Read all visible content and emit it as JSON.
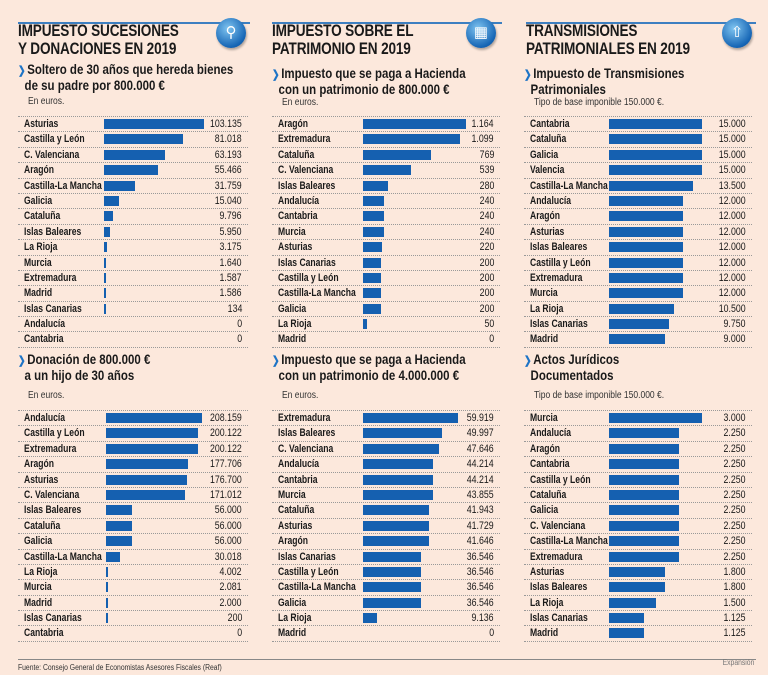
{
  "colors": {
    "bar": "#1560b0",
    "background": "#fce8dc",
    "accent": "#1e74c6"
  },
  "sections": [
    {
      "title_line1": "IMPUESTO SUCESIONES",
      "title_line2": "Y DONACIONES EN 2019",
      "icon": "magnifier-box-icon"
    },
    {
      "title_line1": "IMPUESTO SOBRE EL",
      "title_line2": "PATRIMONIO EN 2019",
      "icon": "building-icon"
    },
    {
      "title_line1": "TRANSMISIONES",
      "title_line2": "PATRIMONIALES EN 2019",
      "icon": "house-arrow-icon"
    }
  ],
  "chart_data": [
    {
      "type": "bar",
      "orientation": "horizontal",
      "title_line1": "Soltero de 30 años que hereda bienes",
      "title_line2": "de su padre por 800.000 €",
      "note": "En euros.",
      "categories": [
        "Asturias",
        "Castilla y León",
        "C. Valenciana",
        "Aragón",
        "Castilla-La Mancha",
        "Galicia",
        "Cataluña",
        "Islas Baleares",
        "La Rioja",
        "Murcia",
        "Extremadura",
        "Madrid",
        "Islas Canarias",
        "Andalucía",
        "Cantabria"
      ],
      "values": [
        103135,
        81018,
        63193,
        55466,
        31759,
        15040,
        9796,
        5950,
        3175,
        1640,
        1587,
        1586,
        134,
        0,
        0
      ],
      "labels": [
        "103.135",
        "81.018",
        "63.193",
        "55.466",
        "31.759",
        "15.040",
        "9.796",
        "5.950",
        "3.175",
        "1.640",
        "1.587",
        "1.586",
        "134",
        "0",
        "0"
      ]
    },
    {
      "type": "bar",
      "orientation": "horizontal",
      "title_line1": "Impuesto que se paga a Hacienda",
      "title_line2": "con un patrimonio de 800.000 €",
      "note": "En euros.",
      "categories": [
        "Aragón",
        "Extremadura",
        "Cataluña",
        "C. Valenciana",
        "Islas Baleares",
        "Andalucía",
        "Cantabria",
        "Murcia",
        "Asturias",
        "Islas Canarias",
        "Castilla y León",
        "Castilla-La Mancha",
        "Galicia",
        "La Rioja",
        "Madrid"
      ],
      "values": [
        1164,
        1099,
        769,
        539,
        280,
        240,
        240,
        240,
        220,
        200,
        200,
        200,
        200,
        50,
        0
      ],
      "labels": [
        "1.164",
        "1.099",
        "769",
        "539",
        "280",
        "240",
        "240",
        "240",
        "220",
        "200",
        "200",
        "200",
        "200",
        "50",
        "0"
      ]
    },
    {
      "type": "bar",
      "orientation": "horizontal",
      "title_line1": "Impuesto de Transmisiones",
      "title_line2": "Patrimoniales",
      "note": "Tipo de base imponible 150.000 €.",
      "categories": [
        "Cantabria",
        "Cataluña",
        "Galicia",
        "Valencia",
        "Castilla-La Mancha",
        "Andalucía",
        "Aragón",
        "Asturias",
        "Islas Baleares",
        "Castilla y León",
        "Extremadura",
        "Murcia",
        "La Rioja",
        "Islas Canarias",
        "Madrid"
      ],
      "values": [
        15000,
        15000,
        15000,
        15000,
        13500,
        12000,
        12000,
        12000,
        12000,
        12000,
        12000,
        12000,
        10500,
        9750,
        9000
      ],
      "labels": [
        "15.000",
        "15.000",
        "15.000",
        "15.000",
        "13.500",
        "12.000",
        "12.000",
        "12.000",
        "12.000",
        "12.000",
        "12.000",
        "12.000",
        "10.500",
        "9.750",
        "9.000"
      ]
    },
    {
      "type": "bar",
      "orientation": "horizontal",
      "title_line1": "Donación de  800.000 €",
      "title_line2": "a un hijo de 30 años",
      "note": "En euros.",
      "categories": [
        "Andalucía",
        "Castilla y León",
        "Extremadura",
        "Aragón",
        "Asturias",
        "C. Valenciana",
        "Islas Baleares",
        "Cataluña",
        "Galicia",
        "Castilla-La Mancha",
        "La Rioja",
        "Murcia",
        "Madrid",
        "Islas Canarias",
        "Cantabria"
      ],
      "values": [
        208159,
        200122,
        200122,
        177706,
        176700,
        171012,
        56000,
        56000,
        56000,
        30018,
        4002,
        2081,
        2000,
        200,
        0
      ],
      "labels": [
        "208.159",
        "200.122",
        "200.122",
        "177.706",
        "176.700",
        "171.012",
        "56.000",
        "56.000",
        "56.000",
        "30.018",
        "4.002",
        "2.081",
        "2.000",
        "200",
        "0"
      ]
    },
    {
      "type": "bar",
      "orientation": "horizontal",
      "title_line1": "Impuesto que se paga a Hacienda",
      "title_line2": "con un patrimonio de 4.000.000 €",
      "note": "En euros.",
      "categories": [
        "Extremadura",
        "Islas Baleares",
        "C. Valenciana",
        "Andalucía",
        "Cantabria",
        "Murcia",
        "Cataluña",
        "Asturias",
        "Aragón",
        "Islas Canarias",
        "Castilla y León",
        "Castilla-La Mancha",
        "Galicia",
        "La Rioja",
        "Madrid"
      ],
      "values": [
        59919,
        49997,
        47646,
        44214,
        44214,
        43855,
        41943,
        41729,
        41646,
        36546,
        36546,
        36546,
        36546,
        9136,
        0
      ],
      "labels": [
        "59.919",
        "49.997",
        "47.646",
        "44.214",
        "44.214",
        "43.855",
        "41.943",
        "41.729",
        "41.646",
        "36.546",
        "36.546",
        "36.546",
        "36.546",
        "9.136",
        "0"
      ]
    },
    {
      "type": "bar",
      "orientation": "horizontal",
      "title_line1": "Actos Jurídicos",
      "title_line2": "Documentados",
      "note": "Tipo de base imponible 150.000 €.",
      "categories": [
        "Murcia",
        "Andalucía",
        "Aragón",
        "Cantabria",
        "Castilla y León",
        "Cataluña",
        "Galicia",
        "C. Valenciana",
        "Castilla-La Mancha",
        "Extremadura",
        "Asturias",
        "Islas Baleares",
        "La Rioja",
        "Islas Canarias",
        "Madrid"
      ],
      "values": [
        3000,
        2250,
        2250,
        2250,
        2250,
        2250,
        2250,
        2250,
        2250,
        2250,
        1800,
        1800,
        1500,
        1125,
        1125
      ],
      "labels": [
        "3.000",
        "2.250",
        "2.250",
        "2.250",
        "2.250",
        "2.250",
        "2.250",
        "2.250",
        "2.250",
        "2.250",
        "1.800",
        "1.800",
        "1.500",
        "1.125",
        "1.125"
      ]
    }
  ],
  "footer": {
    "source": "Fuente: Consejo General de Economistas Asesores Fiscales (Reaf)",
    "brand": "Expansión"
  }
}
